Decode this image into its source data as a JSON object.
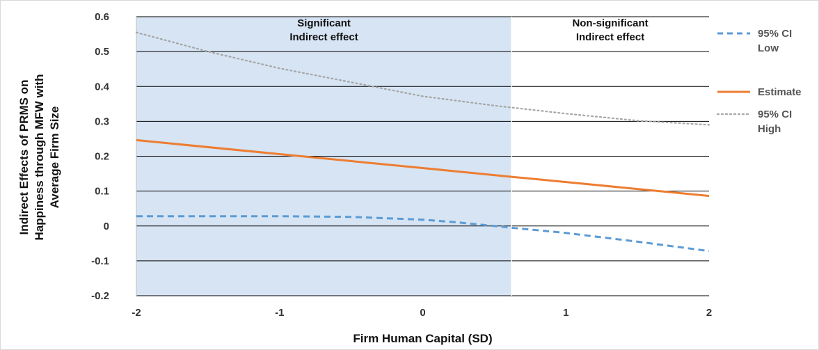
{
  "chart_data": {
    "type": "line",
    "xlabel": "Firm Human Capital (SD)",
    "ylabel_lines": [
      "Indirect Effects of PRMS on",
      "Happiness through MFW with",
      "Average Firm Size"
    ],
    "xlim": [
      -2,
      2
    ],
    "ylim": [
      -0.2,
      0.6
    ],
    "x_ticks": [
      "-2",
      "-1",
      "0",
      "1",
      "2"
    ],
    "y_ticks": [
      "-0.2",
      "-0.1",
      "0",
      "0.1",
      "0.2",
      "0.3",
      "0.4",
      "0.5",
      "0.6"
    ],
    "grid": true,
    "legend_position": "right",
    "regions": [
      {
        "x_range": [
          -2,
          0.62
        ],
        "label_lines": [
          "Significant",
          "Indirect effect"
        ],
        "color": "#d6e4f3"
      },
      {
        "x_range": [
          0.62,
          2
        ],
        "label_lines": [
          "Non-significant",
          "Indirect effect"
        ],
        "color": "#ffffff"
      }
    ],
    "series": [
      {
        "name_lines": [
          "95% CI",
          "Low"
        ],
        "color": "#5b9bd5",
        "style": "dashed",
        "x": [
          -2,
          -1.5,
          -1,
          -0.5,
          0,
          0.25,
          0.5,
          0.62,
          1,
          1.5,
          2
        ],
        "y": [
          0.028,
          0.028,
          0.028,
          0.026,
          0.018,
          0.01,
          0.0,
          -0.005,
          -0.02,
          -0.045,
          -0.072
        ]
      },
      {
        "name_lines": [
          "Estimate"
        ],
        "color": "#ed7d31",
        "style": "solid",
        "x": [
          -2,
          -1,
          0,
          0.62,
          1,
          2
        ],
        "y": [
          0.246,
          0.206,
          0.166,
          0.141,
          0.126,
          0.086
        ]
      },
      {
        "name_lines": [
          "95% CI",
          "High"
        ],
        "color": "#a5a5a5",
        "style": "dotted",
        "x": [
          -2,
          -1.5,
          -1,
          -0.5,
          0,
          0.5,
          1,
          1.5,
          2
        ],
        "y": [
          0.555,
          0.5,
          0.452,
          0.412,
          0.372,
          0.345,
          0.322,
          0.302,
          0.29
        ]
      }
    ]
  }
}
